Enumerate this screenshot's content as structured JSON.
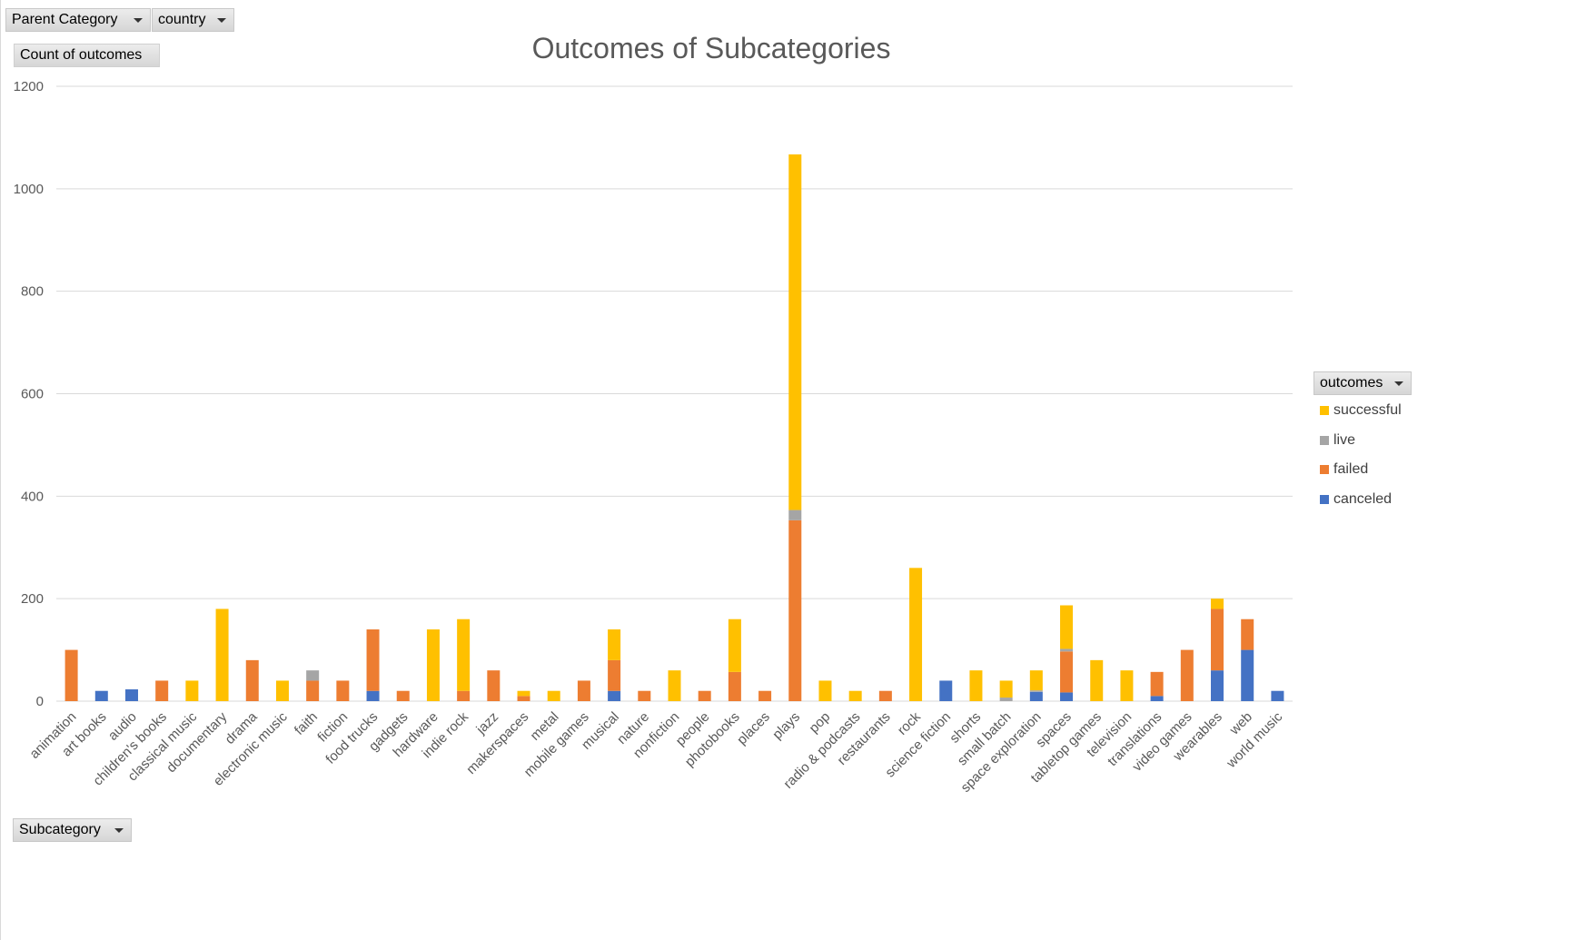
{
  "filters": {
    "parent_category": "Parent Category",
    "country": "country",
    "values_field": "Count of outcomes",
    "axis_field": "Subcategory",
    "legend_field": "outcomes"
  },
  "chart_data": {
    "type": "bar",
    "stacked": true,
    "title": "Outcomes of Subcategories",
    "xlabel": "",
    "ylabel": "",
    "ylim": [
      0,
      1200
    ],
    "yticks": [
      0,
      200,
      400,
      600,
      800,
      1000,
      1200
    ],
    "grid": true,
    "legend_position": "right",
    "categories": [
      "animation",
      "art books",
      "audio",
      "children's books",
      "classical music",
      "documentary",
      "drama",
      "electronic music",
      "faith",
      "fiction",
      "food trucks",
      "gadgets",
      "hardware",
      "indie rock",
      "jazz",
      "makerspaces",
      "metal",
      "mobile games",
      "musical",
      "nature",
      "nonfiction",
      "people",
      "photobooks",
      "places",
      "plays",
      "pop",
      "radio & podcasts",
      "restaurants",
      "rock",
      "science fiction",
      "shorts",
      "small batch",
      "space exploration",
      "spaces",
      "tabletop games",
      "television",
      "translations",
      "video games",
      "wearables",
      "web",
      "world music"
    ],
    "series": [
      {
        "name": "canceled",
        "color": "#4472C4",
        "values": [
          0,
          20,
          23,
          0,
          0,
          0,
          0,
          0,
          0,
          0,
          20,
          0,
          0,
          0,
          0,
          0,
          0,
          0,
          20,
          0,
          0,
          0,
          0,
          0,
          0,
          0,
          0,
          0,
          0,
          40,
          0,
          0,
          18,
          17,
          0,
          0,
          10,
          0,
          60,
          100,
          20
        ]
      },
      {
        "name": "failed",
        "color": "#ED7D31",
        "values": [
          100,
          0,
          0,
          40,
          0,
          0,
          80,
          0,
          40,
          40,
          120,
          20,
          0,
          20,
          60,
          10,
          0,
          40,
          60,
          20,
          0,
          20,
          57,
          20,
          353,
          0,
          0,
          20,
          0,
          0,
          0,
          0,
          0,
          80,
          0,
          0,
          47,
          100,
          120,
          60,
          0
        ]
      },
      {
        "name": "live",
        "color": "#A5A5A5",
        "values": [
          0,
          0,
          0,
          0,
          0,
          0,
          0,
          0,
          20,
          0,
          0,
          0,
          0,
          0,
          0,
          0,
          0,
          0,
          0,
          0,
          0,
          0,
          0,
          0,
          20,
          0,
          0,
          0,
          0,
          0,
          0,
          7,
          3,
          5,
          0,
          0,
          0,
          0,
          0,
          0,
          0
        ]
      },
      {
        "name": "successful",
        "color": "#FFC000",
        "values": [
          0,
          0,
          0,
          0,
          40,
          180,
          0,
          40,
          0,
          0,
          0,
          0,
          140,
          140,
          0,
          10,
          20,
          0,
          60,
          0,
          60,
          0,
          103,
          0,
          694,
          40,
          20,
          0,
          260,
          0,
          60,
          33,
          39,
          85,
          80,
          60,
          0,
          0,
          20,
          0,
          0
        ]
      }
    ],
    "legend_order": [
      "successful",
      "live",
      "failed",
      "canceled"
    ]
  }
}
